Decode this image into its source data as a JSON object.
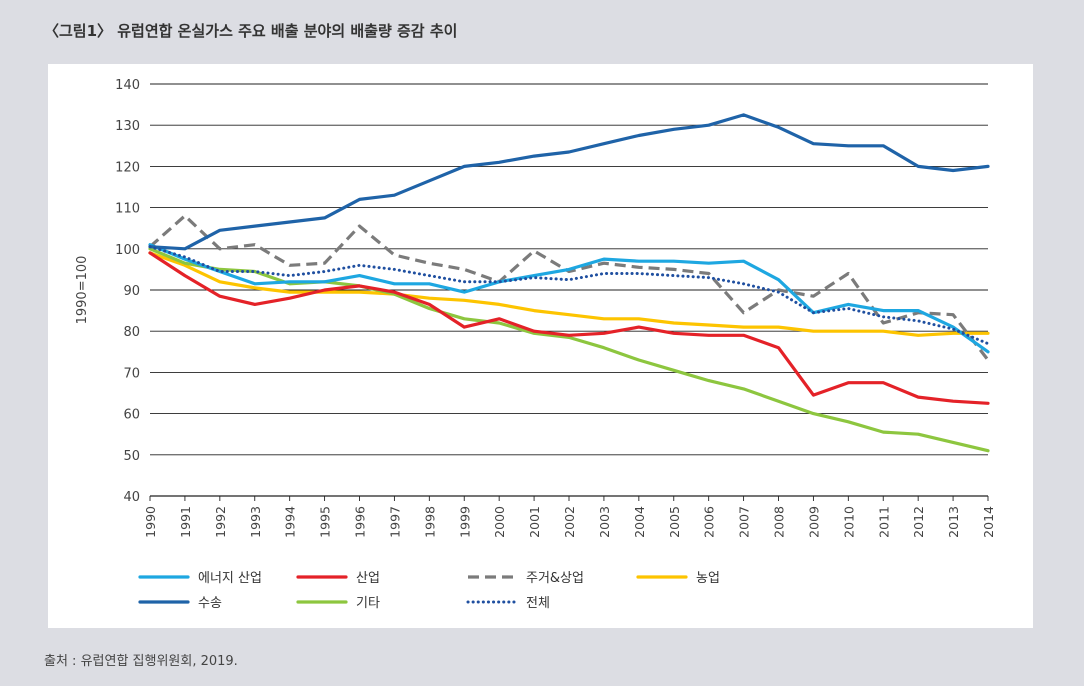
{
  "title": "〈그림1〉 유럽연합 온실가스 주요 배출 분야의 배출량 증감 추이",
  "source": "출처 : 유럽연합 집행위원회, 2019.",
  "chart_data": {
    "type": "line",
    "ylabel": "1990=100",
    "ylim": [
      40,
      140
    ],
    "yticks": [
      40,
      50,
      60,
      70,
      80,
      90,
      100,
      110,
      120,
      130,
      140
    ],
    "grid": true,
    "legend_position": "bottom",
    "x": [
      "1990",
      "1991",
      "1992",
      "1993",
      "1994",
      "1995",
      "1996",
      "1997",
      "1998",
      "1999",
      "2000",
      "2001",
      "2002",
      "2003",
      "2004",
      "2005",
      "2006",
      "2007",
      "2008",
      "2009",
      "2010",
      "2011",
      "2012",
      "2013",
      "2014"
    ],
    "series": [
      {
        "name": "에너지 산업",
        "color": "#1ea7e1",
        "style": "solid",
        "values": [
          101,
          97.5,
          94.5,
          91.5,
          92,
          92,
          93.5,
          91.5,
          91.5,
          89.5,
          92,
          93.5,
          95,
          97.5,
          97,
          97,
          96.5,
          97,
          92.5,
          84.5,
          86.5,
          85,
          85,
          81,
          75
        ]
      },
      {
        "name": "산업",
        "color": "#e42228",
        "style": "solid",
        "values": [
          99,
          93.5,
          88.5,
          86.5,
          88,
          90,
          91,
          89.5,
          86.5,
          81,
          83,
          80,
          79,
          79.5,
          81,
          79.5,
          79,
          79,
          76,
          64.5,
          67.5,
          67.5,
          64,
          63,
          62.5
        ]
      },
      {
        "name": "주거&상업",
        "color": "#7b7b7b",
        "style": "dashed",
        "values": [
          100.5,
          108,
          100,
          101,
          96,
          96.5,
          105.5,
          98.5,
          96.5,
          95,
          92,
          99.5,
          94.5,
          96.5,
          95.5,
          95,
          94,
          84.5,
          90,
          88.5,
          94,
          82,
          84.5,
          84,
          73
        ]
      },
      {
        "name": "농업",
        "color": "#fdc400",
        "style": "solid",
        "values": [
          99,
          96,
          92,
          90.5,
          89.5,
          89.5,
          89.5,
          89,
          88,
          87.5,
          86.5,
          85,
          84,
          83,
          83,
          82,
          81.5,
          81,
          81,
          80,
          80,
          80,
          79,
          79.5,
          79.5
        ]
      },
      {
        "name": "수송",
        "color": "#1f63a8",
        "style": "solid",
        "values": [
          100.5,
          100,
          104.5,
          105.5,
          106.5,
          107.5,
          112,
          113,
          116.5,
          120,
          121,
          122.5,
          123.5,
          125.5,
          127.5,
          129,
          130,
          132.5,
          129.5,
          125.5,
          125,
          125,
          120,
          119,
          120
        ]
      },
      {
        "name": "기타",
        "color": "#8dc63f",
        "style": "solid",
        "values": [
          100,
          96.5,
          95,
          94.5,
          91.5,
          92,
          91,
          89,
          85.5,
          83,
          82,
          79.5,
          78.5,
          76,
          73,
          70.5,
          68,
          66,
          63,
          60,
          58,
          55.5,
          55,
          53,
          51
        ]
      },
      {
        "name": "전체",
        "color": "#1f4fa0",
        "style": "dotted",
        "values": [
          100.5,
          98,
          94.5,
          94.5,
          93.5,
          94.5,
          96,
          95,
          93.5,
          92,
          92,
          93,
          92.5,
          94,
          94,
          93.5,
          93,
          91.5,
          89.5,
          84.5,
          85.5,
          83.5,
          82.5,
          80.5,
          77
        ]
      }
    ]
  }
}
